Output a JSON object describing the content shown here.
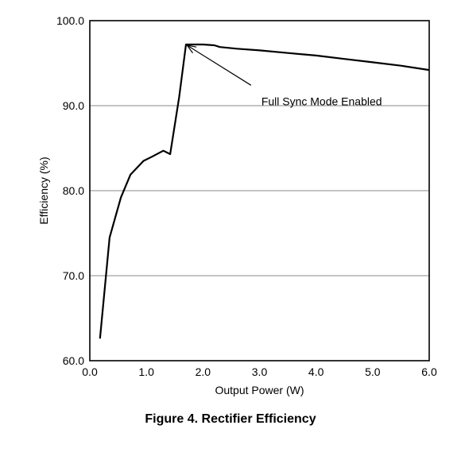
{
  "caption": "Figure 4. Rectifier Efficiency",
  "chart_data": {
    "type": "line",
    "title": "",
    "xlabel": "Output Power (W)",
    "ylabel": "Efficiency (%)",
    "xlim": [
      0.0,
      6.0
    ],
    "ylim": [
      60.0,
      100.0
    ],
    "x_ticks": [
      "0.0",
      "1.0",
      "2.0",
      "3.0",
      "4.0",
      "5.0",
      "6.0"
    ],
    "y_ticks": [
      "60.0",
      "70.0",
      "80.0",
      "90.0",
      "100.0"
    ],
    "grid": "horizontal",
    "series": [
      {
        "x": [
          0.18,
          0.35,
          0.55,
          0.72,
          0.95,
          1.1,
          1.3,
          1.42,
          1.58,
          1.7,
          1.8,
          2.0,
          2.2,
          2.3,
          2.6,
          3.0,
          3.5,
          4.0,
          4.5,
          5.0,
          5.5,
          6.0
        ],
        "y": [
          62.6,
          74.5,
          79.2,
          81.9,
          83.5,
          84.0,
          84.7,
          84.3,
          91.0,
          97.2,
          97.2,
          97.2,
          97.1,
          96.9,
          96.7,
          96.5,
          96.2,
          95.9,
          95.5,
          95.1,
          94.7,
          94.2
        ],
        "color": "#000000"
      }
    ],
    "annotations": [
      {
        "text": "Full Sync Mode Enabled",
        "arrow_from": [
          2.85,
          92.4
        ],
        "arrow_to": [
          1.72,
          97.1
        ]
      }
    ]
  }
}
